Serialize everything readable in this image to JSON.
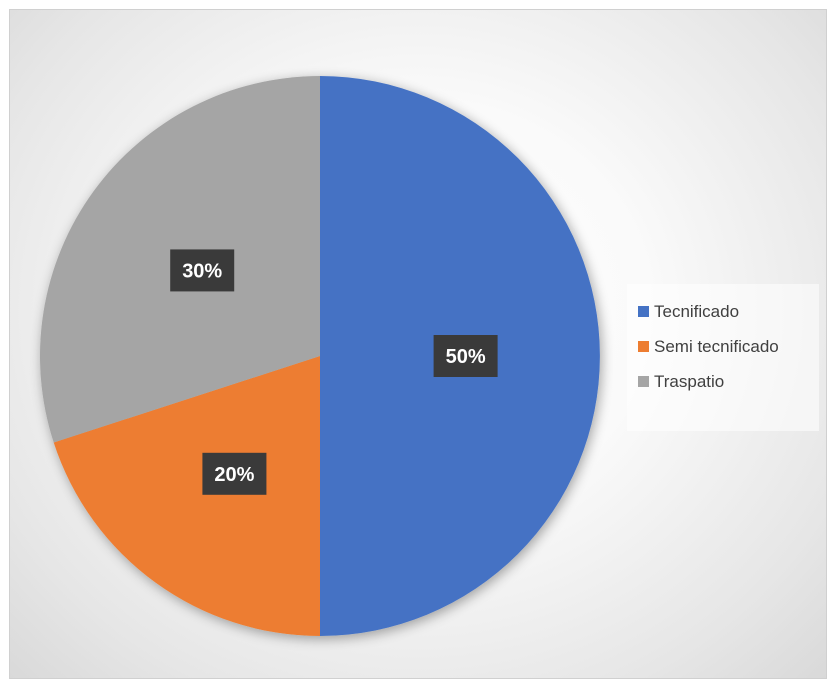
{
  "chart_data": {
    "type": "pie",
    "title": "",
    "categories": [
      "Tecnificado",
      "Semi tecnificado",
      "Traspatio"
    ],
    "values": [
      50,
      20,
      30
    ],
    "labels": [
      "50%",
      "20%",
      "30%"
    ],
    "colors": [
      "#4472C4",
      "#ED7D31",
      "#A5A5A5"
    ],
    "start_angle_deg": 0,
    "direction": "clockwise",
    "legend": {
      "placement": "right",
      "items": [
        {
          "label": "Tecnificado",
          "color": "#4472C4"
        },
        {
          "label": "Semi tecnificado",
          "color": "#ED7D31"
        },
        {
          "label": "Traspatio",
          "color": "#A5A5A5"
        }
      ]
    }
  }
}
